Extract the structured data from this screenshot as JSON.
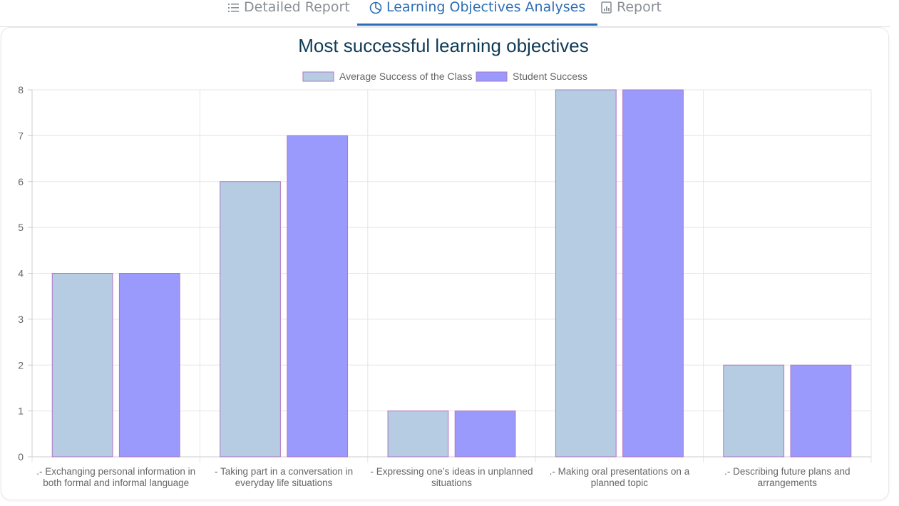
{
  "tabs": [
    {
      "label": "Detailed Report",
      "icon": "list-icon",
      "active": false
    },
    {
      "label": "Learning Objectives Analyses",
      "icon": "pie-chart-icon",
      "active": true
    },
    {
      "label": "Report",
      "icon": "report-icon",
      "active": false
    }
  ],
  "colors": {
    "series1_fill": "#b6cce2",
    "series2_fill": "#9a9afc",
    "bar_border": "#b074c4",
    "title": "#0e3a56",
    "tab_active": "#2d6db5",
    "tab_inactive": "#8a8f95",
    "grid": "#e5e5e5"
  },
  "chart_data": {
    "type": "bar",
    "title": "Most successful learning objectives",
    "legend_position": "top",
    "grid": true,
    "ylim": [
      0,
      8
    ],
    "yticks": [
      0,
      1,
      2,
      3,
      4,
      5,
      6,
      7,
      8
    ],
    "categories": [
      [
        ".- Exchanging personal information in",
        "both formal and informal language"
      ],
      [
        "- Taking part in a conversation in",
        "everyday life situations"
      ],
      [
        "- Expressing one’s ideas in unplanned",
        "situations"
      ],
      [
        ".- Making oral presentations on a",
        "planned topic"
      ],
      [
        ".- Describing future plans and",
        "arrangements"
      ]
    ],
    "series": [
      {
        "name": "Average Success of the Class",
        "values": [
          4,
          6,
          1,
          8,
          2
        ]
      },
      {
        "name": "Student Success",
        "values": [
          4,
          7,
          1,
          8,
          2
        ]
      }
    ]
  }
}
